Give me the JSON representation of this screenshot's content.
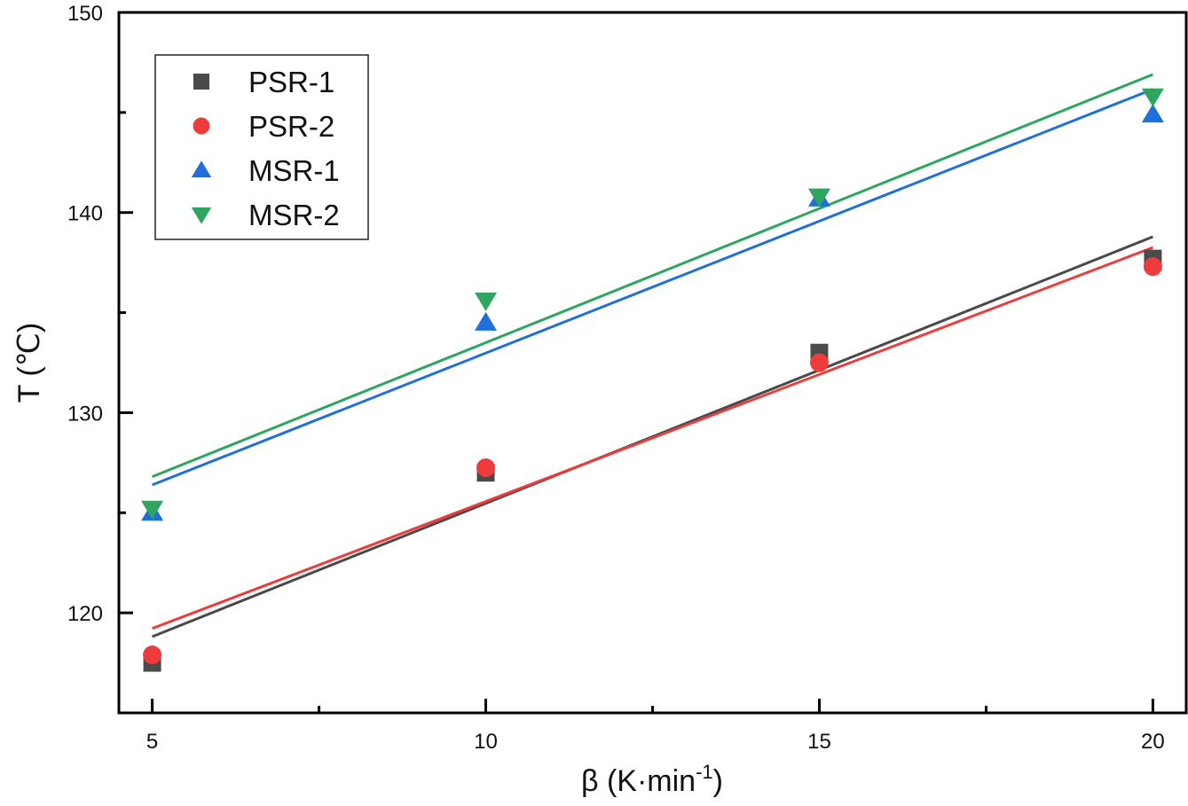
{
  "chart_data": {
    "type": "scatter",
    "title": "",
    "xlabel": "β (K·min",
    "xlabel_sup": "-1",
    "xlabel_close": ")",
    "ylabel": "T (℃)",
    "xlim": [
      4.5,
      20.5
    ],
    "ylim": [
      115,
      150
    ],
    "x_ticks": [
      5,
      10,
      15,
      20
    ],
    "x_minor_ticks": [
      7.5,
      12.5,
      17.5
    ],
    "y_ticks": [
      120,
      130,
      140,
      150
    ],
    "y_minor_ticks": [
      115,
      125,
      135,
      145
    ],
    "grid": false,
    "legend_position": "top-left",
    "x": [
      5,
      10,
      15,
      20
    ],
    "series": [
      {
        "name": "PSR-1",
        "marker": "square",
        "color": "#4a4a4a",
        "values": [
          117.5,
          127.0,
          133.0,
          137.7
        ],
        "fit": "linear"
      },
      {
        "name": "PSR-2",
        "marker": "circle",
        "color": "#ee3b3b",
        "values": [
          117.9,
          127.25,
          132.5,
          137.3
        ],
        "fit": "linear"
      },
      {
        "name": "MSR-1",
        "marker": "triangle-up",
        "color": "#1f6fdc",
        "values": [
          125.0,
          134.5,
          140.7,
          144.9
        ],
        "fit": "linear"
      },
      {
        "name": "MSR-2",
        "marker": "triangle-down",
        "color": "#2ea660",
        "values": [
          125.2,
          135.6,
          140.8,
          145.8
        ],
        "fit": "linear"
      }
    ]
  }
}
